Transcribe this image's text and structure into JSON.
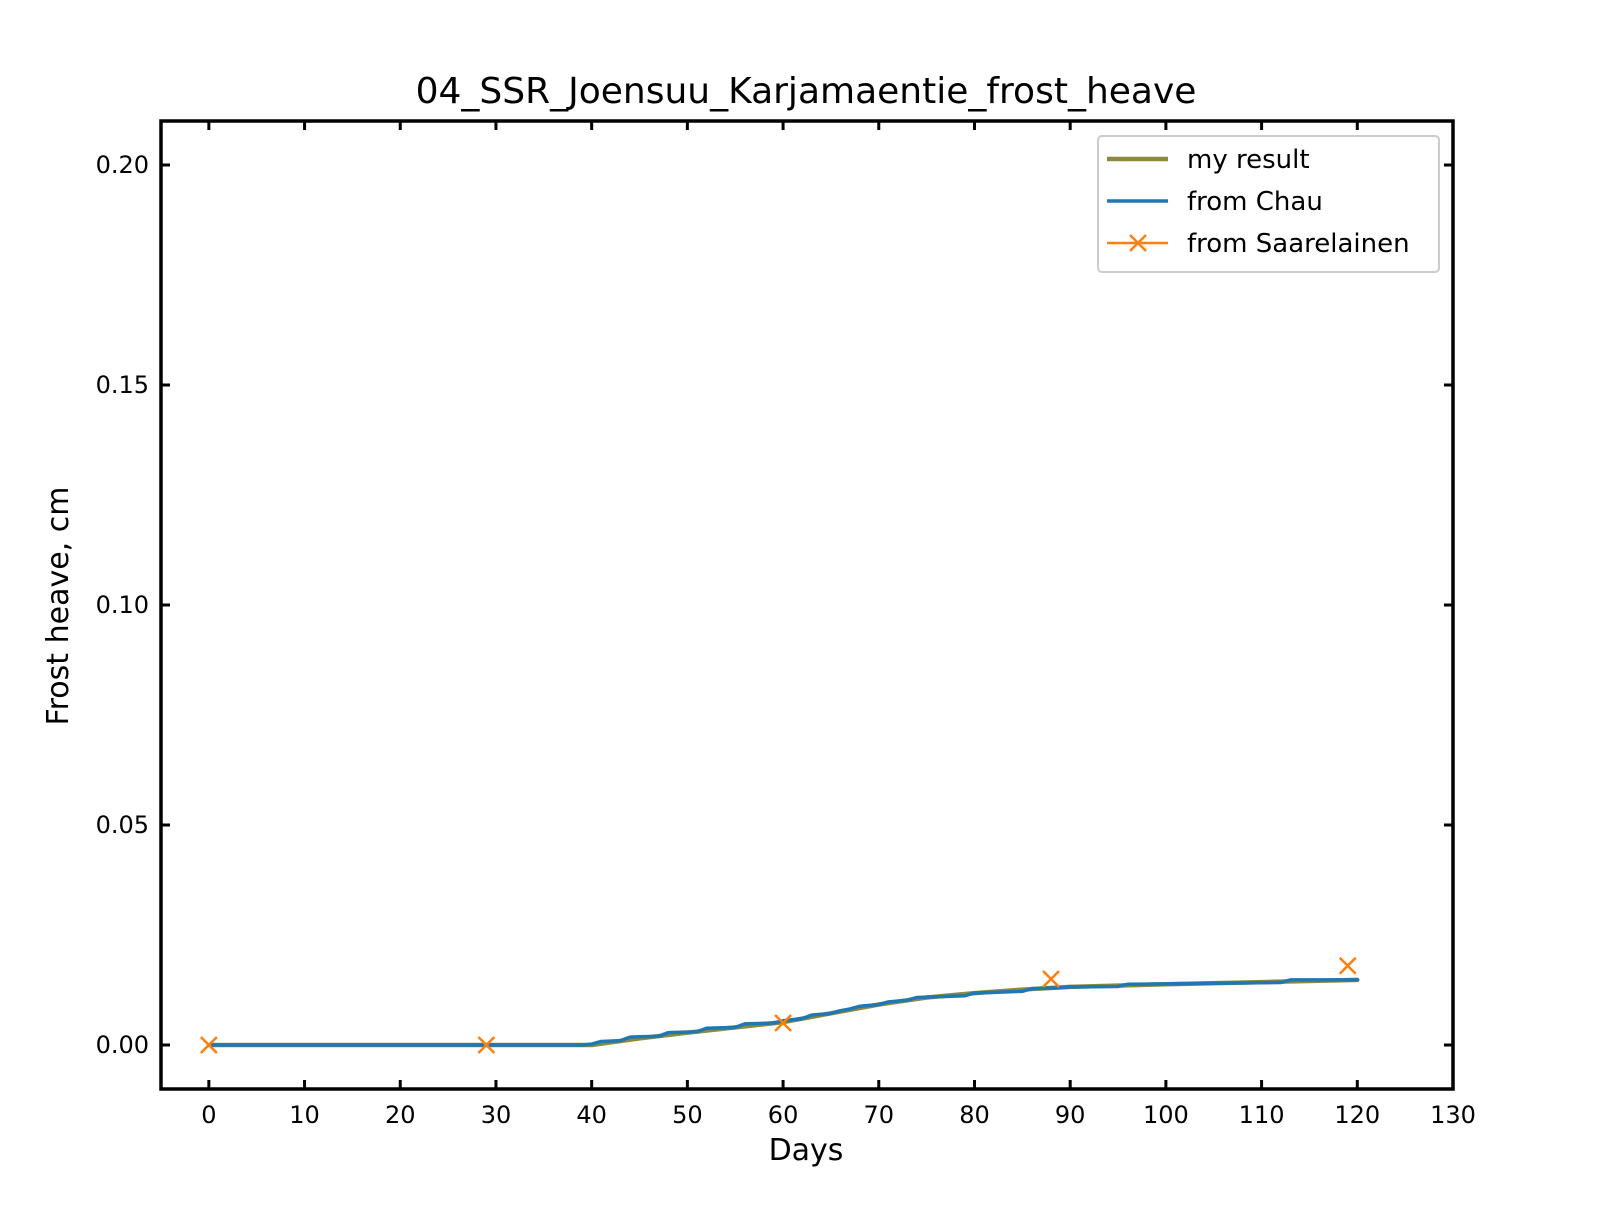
{
  "chart_data": {
    "type": "line",
    "title": "04_SSR_Joensuu_Karjamaentie_frost_heave",
    "xlabel": "Days",
    "ylabel": "Frost heave, cm",
    "xlim": [
      -5,
      130
    ],
    "ylim": [
      -0.01,
      0.21
    ],
    "xticks": [
      0,
      10,
      20,
      30,
      40,
      50,
      60,
      70,
      80,
      90,
      100,
      110,
      120,
      130
    ],
    "yticks": [
      0.0,
      0.05,
      0.1,
      0.15,
      0.2
    ],
    "xtick_labels": [
      "0",
      "10",
      "20",
      "30",
      "40",
      "50",
      "60",
      "70",
      "80",
      "90",
      "100",
      "110",
      "120",
      "130"
    ],
    "ytick_labels": [
      "0.00",
      "0.05",
      "0.10",
      "0.15",
      "0.20"
    ],
    "grid": false,
    "legend_position": "top-right",
    "series": [
      {
        "name": "my result",
        "color": "#8c8a3d",
        "marker": "none",
        "x": [
          0,
          10,
          20,
          30,
          40,
          45,
          50,
          55,
          60,
          65,
          70,
          75,
          80,
          85,
          90,
          100,
          110,
          120
        ],
        "y": [
          0.0,
          0.0,
          0.0,
          0.0,
          0.0,
          0.0015,
          0.0028,
          0.004,
          0.0052,
          0.0072,
          0.0092,
          0.0108,
          0.0118,
          0.0126,
          0.0132,
          0.0138,
          0.0143,
          0.0148
        ]
      },
      {
        "name": "from Chau",
        "color": "#1f77b4",
        "marker": "none",
        "x": [
          0,
          39,
          40,
          41,
          43,
          44,
          47,
          48,
          51,
          52,
          55,
          56,
          59,
          60,
          62,
          63,
          65,
          66,
          67,
          68,
          70,
          71,
          73,
          74,
          79,
          80,
          85,
          86,
          89,
          90,
          95,
          96,
          112,
          113,
          120
        ],
        "y": [
          0.0,
          0.0,
          0.0002,
          0.0008,
          0.001,
          0.0018,
          0.002,
          0.0028,
          0.003,
          0.0038,
          0.004,
          0.0048,
          0.005,
          0.0055,
          0.006,
          0.0068,
          0.0072,
          0.0078,
          0.0082,
          0.0088,
          0.0092,
          0.0098,
          0.0102,
          0.0108,
          0.0112,
          0.0118,
          0.0122,
          0.0128,
          0.013,
          0.0132,
          0.0133,
          0.0138,
          0.0142,
          0.0148,
          0.0148
        ]
      },
      {
        "name": "from Saarelainen",
        "color": "#ff7f0e",
        "marker": "x",
        "line": false,
        "x": [
          0,
          29,
          60,
          88,
          119
        ],
        "y": [
          0.0,
          0.0,
          0.005,
          0.015,
          0.018
        ]
      }
    ]
  }
}
